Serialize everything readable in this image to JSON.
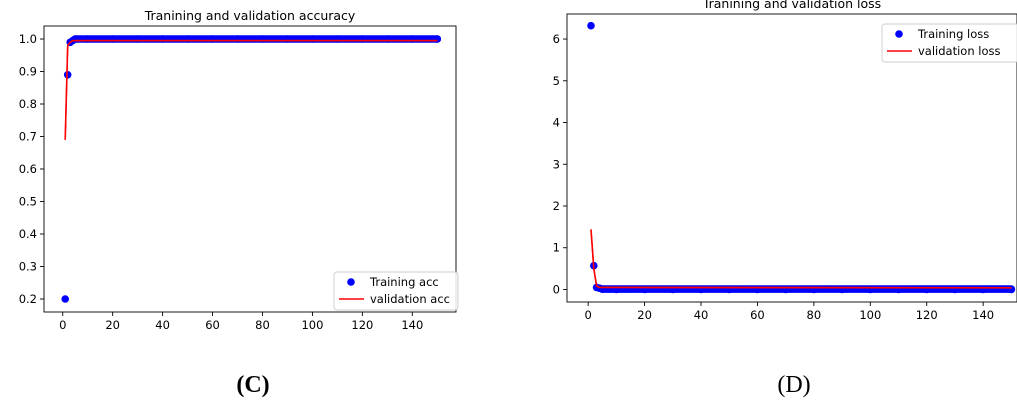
{
  "chart_data": [
    {
      "type": "line",
      "title": "Tranining and validation accuracy",
      "xlabel": "",
      "ylabel": "",
      "xlim": [
        -7.5,
        157.5
      ],
      "ylim": [
        0.16,
        1.04
      ],
      "xticks": [
        0,
        20,
        40,
        60,
        80,
        100,
        120,
        140
      ],
      "yticks": [
        0.2,
        0.3,
        0.4,
        0.5,
        0.6,
        0.7,
        0.8,
        0.9,
        1.0
      ],
      "ytick_labels": [
        "0.2",
        "0.3",
        "0.4",
        "0.5",
        "0.6",
        "0.7",
        "0.8",
        "0.9",
        "1.0"
      ],
      "grid": false,
      "legend_position": "bottom-right",
      "series": [
        {
          "name": "Training acc",
          "style": "dots",
          "color": "#0000ff",
          "points": [
            [
              1,
              0.2
            ],
            [
              2,
              0.89
            ],
            [
              3,
              0.99
            ],
            [
              4,
              0.995
            ],
            [
              5,
              1.0
            ],
            [
              10,
              1.0
            ],
            [
              20,
              1.0
            ],
            [
              30,
              1.0
            ],
            [
              40,
              1.0
            ],
            [
              50,
              1.0
            ],
            [
              60,
              1.0
            ],
            [
              70,
              1.0
            ],
            [
              80,
              1.0
            ],
            [
              90,
              1.0
            ],
            [
              100,
              1.0
            ],
            [
              110,
              1.0
            ],
            [
              120,
              1.0
            ],
            [
              130,
              1.0
            ],
            [
              140,
              1.0
            ],
            [
              150,
              1.0
            ]
          ]
        },
        {
          "name": "validation acc",
          "style": "line",
          "color": "#ff0000",
          "points": [
            [
              1,
              0.69
            ],
            [
              2,
              0.98
            ],
            [
              3,
              0.99
            ],
            [
              4,
              0.995
            ],
            [
              150,
              0.995
            ]
          ]
        }
      ]
    },
    {
      "type": "line",
      "title": "Tranining and validation loss",
      "xlabel": "",
      "ylabel": "",
      "xlim": [
        -7.5,
        152
      ],
      "ylim": [
        -0.3,
        6.6
      ],
      "xticks": [
        0,
        20,
        40,
        60,
        80,
        100,
        120,
        140
      ],
      "yticks": [
        0,
        1,
        2,
        3,
        4,
        5,
        6
      ],
      "ytick_labels": [
        "0",
        "1",
        "2",
        "3",
        "4",
        "5",
        "6"
      ],
      "grid": false,
      "legend_position": "top-right",
      "series": [
        {
          "name": "Training loss",
          "style": "dots",
          "color": "#0000ff",
          "points": [
            [
              1,
              6.32
            ],
            [
              2,
              0.57
            ],
            [
              3,
              0.05
            ],
            [
              4,
              0.03
            ],
            [
              5,
              0.01
            ],
            [
              10,
              0.0
            ],
            [
              20,
              0.0
            ],
            [
              30,
              0.0
            ],
            [
              40,
              0.0
            ],
            [
              50,
              0.0
            ],
            [
              60,
              0.0
            ],
            [
              70,
              0.0
            ],
            [
              80,
              0.0
            ],
            [
              90,
              0.0
            ],
            [
              100,
              0.0
            ],
            [
              110,
              0.0
            ],
            [
              120,
              0.0
            ],
            [
              130,
              0.0
            ],
            [
              140,
              0.0
            ],
            [
              150,
              0.0
            ]
          ]
        },
        {
          "name": "validation loss",
          "style": "line",
          "color": "#ff0000",
          "points": [
            [
              1,
              1.44
            ],
            [
              2,
              0.5
            ],
            [
              3,
              0.08
            ],
            [
              4,
              0.05
            ],
            [
              150,
              0.04
            ]
          ]
        }
      ]
    }
  ],
  "captions": [
    "(C)",
    "(D)"
  ]
}
